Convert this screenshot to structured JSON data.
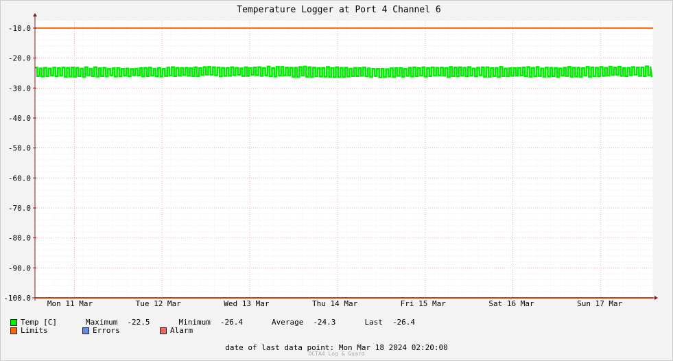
{
  "chart_data": {
    "type": "line",
    "title": "Temperature Logger at Port 4 Channel 6",
    "xlabel": "",
    "ylabel": "",
    "ylim": [
      -100,
      -7.5
    ],
    "yticks": [
      "-10.0",
      "-20.0",
      "-30.0",
      "-40.0",
      "-50.0",
      "-60.0",
      "-70.0",
      "-80.0",
      "-90.0",
      "-100.0"
    ],
    "ytick_values": [
      -10,
      -20,
      -30,
      -40,
      -50,
      -60,
      -70,
      -80,
      -90,
      -100
    ],
    "x_labels": [
      "Mon 11 Mar",
      "Tue 12 Mar",
      "Wed 13 Mar",
      "Thu 14 Mar",
      "Fri 15 Mar",
      "Sat 16 Mar",
      "Sun 17 Mar"
    ],
    "grid": true,
    "series": [
      {
        "name": "Temp [C]",
        "color": "#00ee00",
        "band_low": [
          -26.0,
          -26.0,
          -25.8,
          -26.0,
          -26.2,
          -26.0,
          -26.0,
          -25.8
        ],
        "band_high": [
          -23.2,
          -23.4,
          -23.2,
          -23.0,
          -23.4,
          -23.2,
          -23.2,
          -23.0
        ],
        "last": -26.4
      },
      {
        "name": "Limits",
        "color": "#ff6600",
        "values": [
          -10.0,
          -100.0
        ]
      }
    ],
    "legend_placement": "bottom-left"
  },
  "legend": {
    "temp_label": "Temp [C]",
    "maximum_label": "Maximum",
    "maximum_value": "-22.5",
    "minimum_label": "Minimum",
    "minimum_value": "-26.4",
    "average_label": "Average",
    "average_value": "-24.3",
    "last_label": "Last",
    "last_value": "-26.4",
    "limits_label": "Limits",
    "errors_label": "Errors",
    "alarm_label": "Alarm",
    "colors": {
      "temp": "#00ee00",
      "limits": "#ff6600",
      "errors": "#6688ee",
      "alarm": "#ee6666"
    }
  },
  "footer": {
    "last_point_label": "date of last data point:",
    "last_point_value": "Mon Mar 18 2024 02:20:00",
    "credit": "OCTA4 Log & Guard"
  }
}
